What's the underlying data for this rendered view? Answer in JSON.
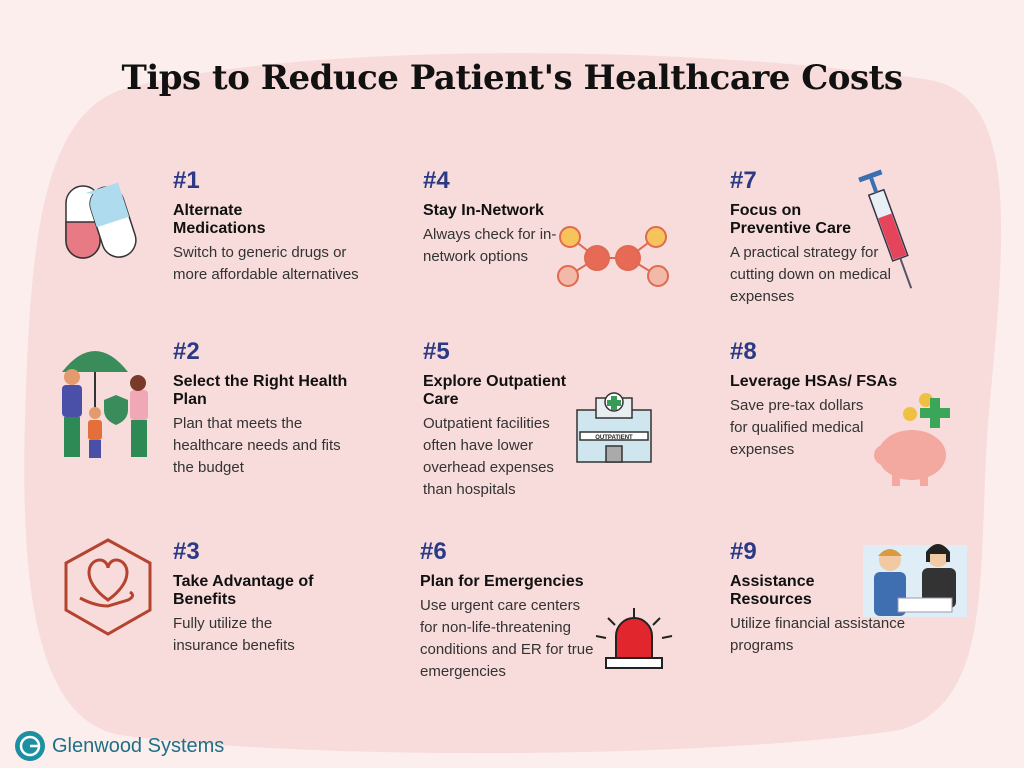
{
  "header": {
    "title": "Tips to Reduce Patient's Healthcare Costs"
  },
  "tips": [
    {
      "number": "#1",
      "title": "Alternate Medications",
      "description": "Switch to generic drugs or more affordable alternatives"
    },
    {
      "number": "#2",
      "title": "Select the Right Health Plan",
      "description": "Plan that meets the healthcare needs and fits the budget"
    },
    {
      "number": "#3",
      "title": "Take Advantage of Benefits",
      "description": "Fully utilize the insurance benefits"
    },
    {
      "number": "#4",
      "title": "Stay In-Network",
      "description": "Always check for in-network options"
    },
    {
      "number": "#5",
      "title": "Explore Outpatient Care",
      "description": "Outpatient facilities often have lower overhead expenses than hospitals",
      "icon_label": "OUTPATIENT"
    },
    {
      "number": "#6",
      "title": "Plan for Emergencies",
      "description": "Use urgent care centers for non-life-threatening conditions and ER for true emergencies"
    },
    {
      "number": "#7",
      "title": "Focus on Preventive Care",
      "description": "A practical strategy for cutting down on medical expenses"
    },
    {
      "number": "#8",
      "title": "Leverage HSAs/ FSAs",
      "description": "Save pre-tax dollars for qualified medical expenses"
    },
    {
      "number": "#9",
      "title": "Assistance Resources",
      "description": "Utilize financial assistance programs"
    }
  ],
  "footer": {
    "brand": "Glenwood Systems"
  }
}
